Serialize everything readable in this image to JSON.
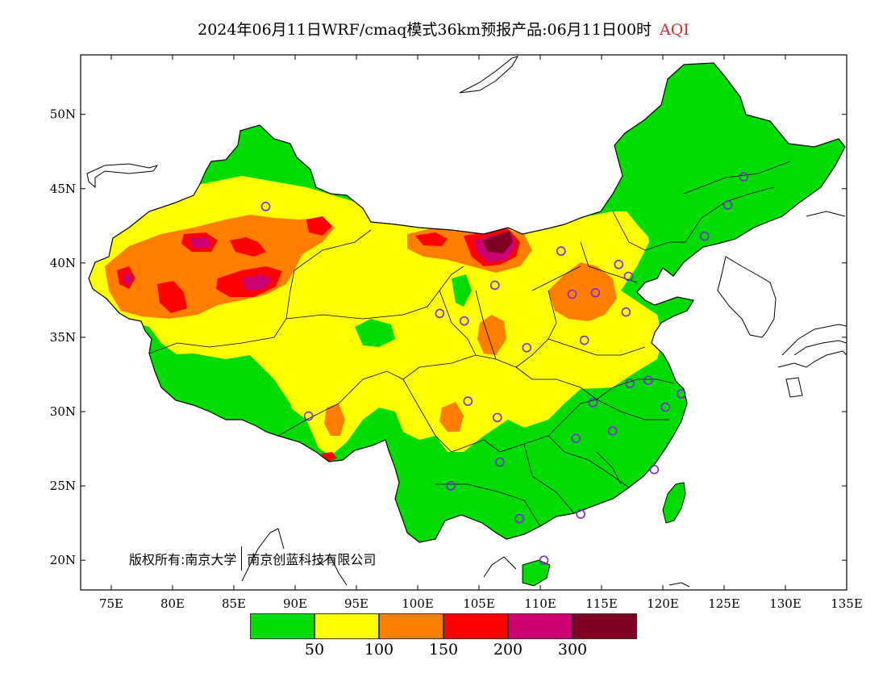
{
  "header": {
    "title": "2024年06月11日WRF/cmaq模式36km预报产品:06月11日00时",
    "tag": "AQI",
    "tag_color": "#e0262a"
  },
  "axes": {
    "x_ticks": [
      "75E",
      "80E",
      "85E",
      "90E",
      "95E",
      "100E",
      "105E",
      "110E",
      "115E",
      "120E",
      "125E",
      "130E",
      "135E"
    ],
    "y_ticks": [
      "20N",
      "25N",
      "30N",
      "35N",
      "40N",
      "45N",
      "50N"
    ],
    "lon_range": [
      72.5,
      135
    ],
    "lat_range": [
      18,
      54
    ]
  },
  "legend": {
    "colors": [
      "#00dc00",
      "#ffff00",
      "#ff7e00",
      "#ff0000",
      "#cc0070",
      "#7e0023"
    ],
    "labels": [
      "50",
      "100",
      "150",
      "200",
      "300"
    ]
  },
  "copyright": {
    "part1": "版权所有:南京大学",
    "part2": "南京创蓝科技有限公司"
  },
  "chart_data": {
    "type": "heatmap",
    "title": "2024年06月11日WRF/cmaq模式36km预报产品:06月11日00时",
    "variable": "AQI",
    "legend_breaks": [
      50,
      100,
      150,
      200,
      300
    ],
    "x_range": [
      72.5,
      135
    ],
    "y_range": [
      18,
      54
    ],
    "x_ticks": [
      "75E",
      "80E",
      "85E",
      "90E",
      "95E",
      "100E",
      "105E",
      "110E",
      "115E",
      "120E",
      "125E",
      "130E",
      "135E"
    ],
    "y_ticks": [
      "20N",
      "25N",
      "30N",
      "35N",
      "40N",
      "45N",
      "50N"
    ],
    "regions": [
      {
        "area": "Tarim Basin (Xinjiang)",
        "aqi_class": "150-200",
        "peak_class": "200-300"
      },
      {
        "area": "Inner Mongolia (Ordos/Alxa)",
        "aqi_class": "100-150",
        "peak_class": ">300"
      },
      {
        "area": "North China Plain",
        "aqi_class": "100-150"
      },
      {
        "area": "Northeast China",
        "aqi_class": "0-50"
      },
      {
        "area": "South China",
        "aqi_class": "0-50"
      },
      {
        "area": "Tibetan Plateau",
        "aqi_class": "50-100"
      },
      {
        "area": "Sichuan / Chongqing",
        "aqi_class": "50-100"
      }
    ],
    "stations": [
      {
        "lon": 87.6,
        "lat": 43.8
      },
      {
        "lon": 126.6,
        "lat": 45.8
      },
      {
        "lon": 125.3,
        "lat": 43.9
      },
      {
        "lon": 123.4,
        "lat": 41.8
      },
      {
        "lon": 111.7,
        "lat": 40.8
      },
      {
        "lon": 116.4,
        "lat": 39.9
      },
      {
        "lon": 117.2,
        "lat": 39.1
      },
      {
        "lon": 106.3,
        "lat": 38.5
      },
      {
        "lon": 112.6,
        "lat": 37.9
      },
      {
        "lon": 114.5,
        "lat": 38.0
      },
      {
        "lon": 103.8,
        "lat": 36.1
      },
      {
        "lon": 101.8,
        "lat": 36.6
      },
      {
        "lon": 117.0,
        "lat": 36.7
      },
      {
        "lon": 108.9,
        "lat": 34.3
      },
      {
        "lon": 113.6,
        "lat": 34.8
      },
      {
        "lon": 117.3,
        "lat": 31.9
      },
      {
        "lon": 118.8,
        "lat": 32.1
      },
      {
        "lon": 121.5,
        "lat": 31.2
      },
      {
        "lon": 120.2,
        "lat": 30.3
      },
      {
        "lon": 114.3,
        "lat": 30.6
      },
      {
        "lon": 104.1,
        "lat": 30.7
      },
      {
        "lon": 106.5,
        "lat": 29.6
      },
      {
        "lon": 91.1,
        "lat": 29.7
      },
      {
        "lon": 112.9,
        "lat": 28.2
      },
      {
        "lon": 115.9,
        "lat": 28.7
      },
      {
        "lon": 106.7,
        "lat": 26.6
      },
      {
        "lon": 119.3,
        "lat": 26.1
      },
      {
        "lon": 102.7,
        "lat": 25.0
      },
      {
        "lon": 108.3,
        "lat": 22.8
      },
      {
        "lon": 113.3,
        "lat": 23.1
      },
      {
        "lon": 110.3,
        "lat": 20.0
      }
    ]
  }
}
